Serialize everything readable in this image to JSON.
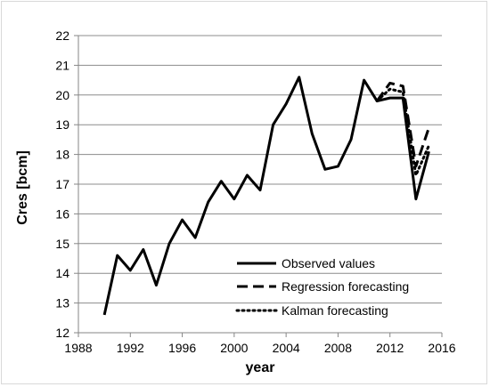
{
  "chart_data": {
    "type": "line",
    "xlabel": "year",
    "ylabel": "Cres [bcm]",
    "xlim": [
      1988,
      2016
    ],
    "ylim": [
      12,
      22
    ],
    "xticks": [
      1988,
      1992,
      1996,
      2000,
      2004,
      2008,
      2012,
      2016
    ],
    "yticks": [
      12,
      13,
      14,
      15,
      16,
      17,
      18,
      19,
      20,
      21,
      22
    ],
    "grid": "horizontal",
    "legend_position": "bottom-right",
    "series": [
      {
        "name": "Observed values",
        "style": "solid",
        "x": [
          1990,
          1991,
          1992,
          1993,
          1994,
          1995,
          1996,
          1997,
          1998,
          1999,
          2000,
          2001,
          2002,
          2003,
          2004,
          2005,
          2006,
          2007,
          2008,
          2009,
          2010,
          2011,
          2012,
          2013,
          2014,
          2015
        ],
        "y": [
          12.6,
          14.6,
          14.1,
          14.8,
          13.6,
          15.0,
          15.8,
          15.2,
          16.4,
          17.1,
          16.5,
          17.3,
          16.8,
          19.0,
          19.7,
          20.6,
          18.7,
          17.5,
          17.6,
          18.5,
          20.5,
          19.8,
          19.9,
          19.9,
          16.5,
          18.1
        ]
      },
      {
        "name": "Regression forecasting",
        "style": "dashed",
        "x": [
          2011,
          2012,
          2013,
          2014,
          2015
        ],
        "y": [
          19.8,
          20.4,
          20.3,
          17.6,
          18.9
        ]
      },
      {
        "name": "Kalman forecasting",
        "style": "dotted",
        "x": [
          2011,
          2012,
          2013,
          2014,
          2015
        ],
        "y": [
          19.8,
          20.2,
          20.1,
          17.3,
          18.3
        ]
      }
    ]
  }
}
